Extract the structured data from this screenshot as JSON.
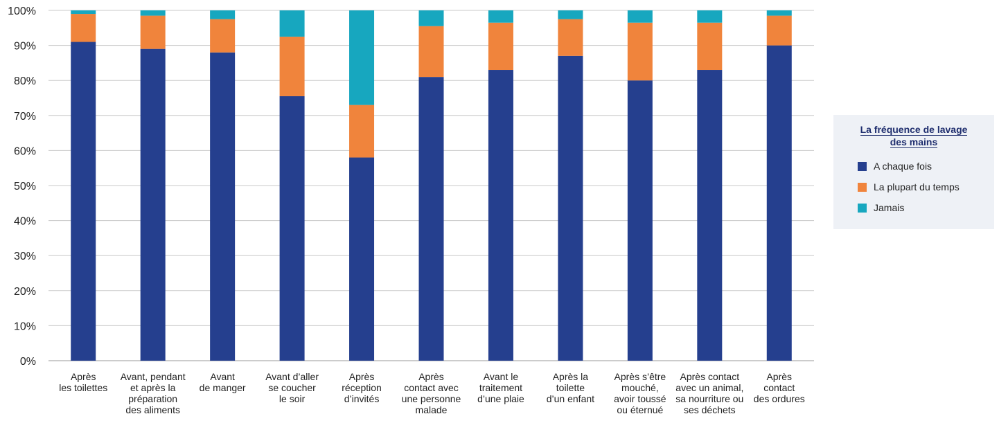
{
  "chart_data": {
    "type": "bar",
    "stacked": true,
    "categories": [
      [
        "Après",
        "les toilettes"
      ],
      [
        "Avant, pendant",
        "et après la",
        "préparation",
        "des aliments"
      ],
      [
        "Avant",
        "de manger"
      ],
      [
        "Avant d’aller",
        "se coucher",
        "le soir"
      ],
      [
        "Après",
        "réception",
        "d’invités"
      ],
      [
        "Après",
        "contact avec",
        "une personne",
        "malade"
      ],
      [
        "Avant le",
        "traitement",
        "d’une plaie"
      ],
      [
        "Après la",
        "toilette",
        "d’un enfant"
      ],
      [
        "Après s’être",
        "mouché,",
        "avoir toussé",
        "ou éternué"
      ],
      [
        "Après contact",
        "avec un animal,",
        "sa nourriture ou",
        "ses déchets"
      ],
      [
        "Après",
        "contact",
        "des ordures"
      ]
    ],
    "series": [
      {
        "name": "A chaque fois",
        "color": "#253f8e",
        "values": [
          91,
          89,
          88,
          75.5,
          58,
          81,
          83,
          87,
          80,
          83,
          90
        ]
      },
      {
        "name": "La plupart du temps",
        "color": "#f0843c",
        "values": [
          8,
          9.5,
          9.5,
          17,
          15,
          14.5,
          13.5,
          10.5,
          16.5,
          13.5,
          8.5
        ]
      },
      {
        "name": "Jamais",
        "color": "#17a7bf",
        "values": [
          1,
          1.5,
          2.5,
          7.5,
          27,
          4.5,
          3.5,
          2.5,
          3.5,
          3.5,
          1.5
        ]
      }
    ],
    "yticks": [
      "0%",
      "10%",
      "20%",
      "30%",
      "40%",
      "50%",
      "60%",
      "70%",
      "80%",
      "90%",
      "100%"
    ],
    "ylim": [
      0,
      100
    ],
    "grid": true,
    "legend_title": "La fréquence de lavage des mains",
    "legend_position": "right"
  }
}
